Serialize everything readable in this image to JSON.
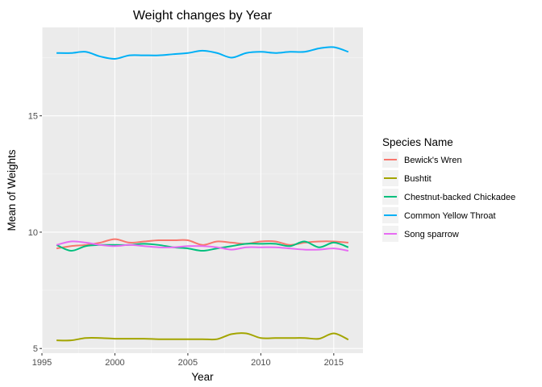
{
  "chart_data": {
    "type": "line",
    "title": "Weight changes by Year",
    "xlabel": "Year",
    "ylabel": "Mean of Weights",
    "xlim": [
      1995,
      2017
    ],
    "ylim": [
      4.8,
      18.8
    ],
    "xticks": [
      1995,
      2000,
      2005,
      2010,
      2015
    ],
    "yticks": [
      5,
      10,
      15
    ],
    "grid": true,
    "legend_title": "Species Name",
    "legend_position": "right",
    "x": [
      1996,
      1997,
      1998,
      1999,
      2000,
      2001,
      2002,
      2003,
      2004,
      2005,
      2006,
      2007,
      2008,
      2009,
      2010,
      2011,
      2012,
      2013,
      2014,
      2015,
      2016
    ],
    "series": [
      {
        "name": "Bewick's Wren",
        "color": "#F8766D",
        "values": [
          9.3,
          9.4,
          9.45,
          9.55,
          9.7,
          9.55,
          9.6,
          9.65,
          9.65,
          9.65,
          9.45,
          9.6,
          9.55,
          9.5,
          9.6,
          9.6,
          9.45,
          9.55,
          9.6,
          9.6,
          9.55
        ]
      },
      {
        "name": "Bushtit",
        "color": "#A3A500",
        "values": [
          5.35,
          5.35,
          5.45,
          5.45,
          5.42,
          5.42,
          5.42,
          5.4,
          5.4,
          5.4,
          5.4,
          5.4,
          5.62,
          5.65,
          5.45,
          5.45,
          5.45,
          5.45,
          5.42,
          5.65,
          5.38
        ]
      },
      {
        "name": "Chestnut-backed Chickadee",
        "color": "#00BF7D",
        "values": [
          9.45,
          9.2,
          9.4,
          9.45,
          9.45,
          9.45,
          9.5,
          9.45,
          9.35,
          9.3,
          9.2,
          9.3,
          9.4,
          9.5,
          9.5,
          9.5,
          9.4,
          9.6,
          9.35,
          9.55,
          9.35
        ]
      },
      {
        "name": "Common Yellow Throat",
        "color": "#00B0F6",
        "values": [
          17.7,
          17.7,
          17.75,
          17.55,
          17.45,
          17.6,
          17.6,
          17.6,
          17.65,
          17.7,
          17.8,
          17.7,
          17.5,
          17.7,
          17.75,
          17.7,
          17.75,
          17.75,
          17.9,
          17.95,
          17.75
        ]
      },
      {
        "name": "Song sparrow",
        "color": "#E76BF3",
        "values": [
          9.45,
          9.6,
          9.55,
          9.45,
          9.4,
          9.45,
          9.4,
          9.35,
          9.35,
          9.4,
          9.4,
          9.35,
          9.25,
          9.35,
          9.35,
          9.35,
          9.3,
          9.25,
          9.25,
          9.3,
          9.2
        ]
      }
    ]
  }
}
